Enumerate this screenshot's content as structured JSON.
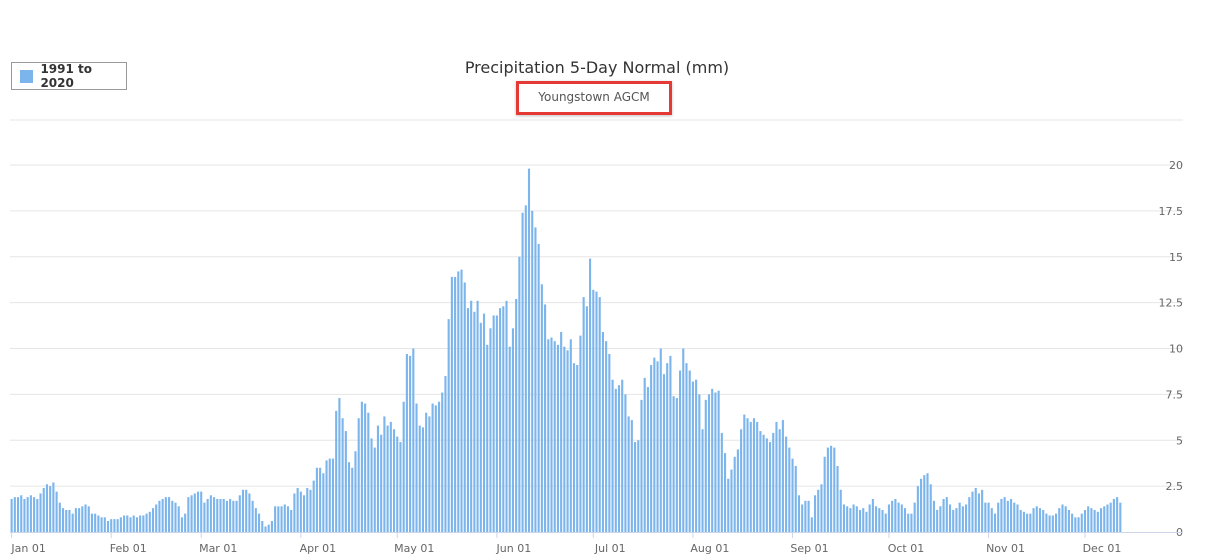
{
  "chart_data": {
    "type": "bar",
    "title": "Precipitation 5-Day Normal (mm)",
    "subtitle": "Youngstown AGCM",
    "xlabel": "",
    "ylabel": "",
    "ylim": [
      0,
      20
    ],
    "y_ticks": [
      "0",
      "2.5",
      "5",
      "7.5",
      "10",
      "12.5",
      "15",
      "17.5",
      "20"
    ],
    "y_axis_side": "right",
    "grid": true,
    "legend_placement": "top-left",
    "x_tick_labels": [
      "Jan 01",
      "Feb 01",
      "Mar 01",
      "Apr 01",
      "May 01",
      "Jun 01",
      "Jul 01",
      "Aug 01",
      "Sep 01",
      "Oct 01",
      "Nov 01",
      "Dec 01"
    ],
    "x_tick_days": [
      1,
      32,
      60,
      91,
      121,
      152,
      182,
      213,
      244,
      274,
      305,
      335
    ],
    "series": [
      {
        "name": "1991 to 2020",
        "color": "#7cb5ec",
        "x_unit": "day of year",
        "day_start": 1,
        "values": [
          1.8,
          1.9,
          1.9,
          2.0,
          1.8,
          1.9,
          2.0,
          1.9,
          1.8,
          2.1,
          2.4,
          2.6,
          2.5,
          2.7,
          2.2,
          1.6,
          1.3,
          1.2,
          1.2,
          1.0,
          1.3,
          1.3,
          1.4,
          1.5,
          1.4,
          1.0,
          1.0,
          0.9,
          0.8,
          0.8,
          0.6,
          0.7,
          0.7,
          0.7,
          0.8,
          0.9,
          0.9,
          0.8,
          0.9,
          0.8,
          0.9,
          0.9,
          1.0,
          1.1,
          1.3,
          1.5,
          1.7,
          1.8,
          1.9,
          1.9,
          1.7,
          1.6,
          1.4,
          0.8,
          1.0,
          1.9,
          2.0,
          2.1,
          2.2,
          2.2,
          1.6,
          1.8,
          2.0,
          1.9,
          1.8,
          1.8,
          1.8,
          1.7,
          1.8,
          1.7,
          1.7,
          2.0,
          2.3,
          2.3,
          2.1,
          1.7,
          1.3,
          1.0,
          0.6,
          0.3,
          0.4,
          0.6,
          1.4,
          1.4,
          1.4,
          1.5,
          1.4,
          1.2,
          2.1,
          2.4,
          2.2,
          2.0,
          2.4,
          2.3,
          2.8,
          3.5,
          3.5,
          3.2,
          3.9,
          4.0,
          4.0,
          6.6,
          7.3,
          6.2,
          5.5,
          3.8,
          3.5,
          4.4,
          6.2,
          7.1,
          7.0,
          6.5,
          5.1,
          4.6,
          5.8,
          5.3,
          6.3,
          5.8,
          6.0,
          5.6,
          5.2,
          4.9,
          7.1,
          9.7,
          9.6,
          10.0,
          7.0,
          5.8,
          5.7,
          6.5,
          6.3,
          7.0,
          6.9,
          7.1,
          7.6,
          8.5,
          11.6,
          13.9,
          13.9,
          14.2,
          14.3,
          13.6,
          12.2,
          12.6,
          12.0,
          12.6,
          11.4,
          11.9,
          10.2,
          11.1,
          11.8,
          11.8,
          12.2,
          12.3,
          12.6,
          10.1,
          11.1,
          12.7,
          15.0,
          17.4,
          17.8,
          19.8,
          17.5,
          16.6,
          15.7,
          13.5,
          12.4,
          10.5,
          10.6,
          10.4,
          10.2,
          10.9,
          10.1,
          9.9,
          10.5,
          9.2,
          9.1,
          10.7,
          12.8,
          12.3,
          14.9,
          13.2,
          13.1,
          12.8,
          10.9,
          10.4,
          9.7,
          8.3,
          7.8,
          8.0,
          8.3,
          7.5,
          6.3,
          6.1,
          4.9,
          5.0,
          7.2,
          8.4,
          7.9,
          9.1,
          9.5,
          9.3,
          10.0,
          8.6,
          9.2,
          9.6,
          7.4,
          7.3,
          8.8,
          10.0,
          9.2,
          8.8,
          8.2,
          8.3,
          7.5,
          5.6,
          7.2,
          7.5,
          7.8,
          7.6,
          7.7,
          5.4,
          4.3,
          2.9,
          3.4,
          4.1,
          4.5,
          5.6,
          6.4,
          6.2,
          6.0,
          6.2,
          6.0,
          5.5,
          5.3,
          5.1,
          4.9,
          5.4,
          6.0,
          5.6,
          6.1,
          5.2,
          4.6,
          4.0,
          3.6,
          2.0,
          1.5,
          1.7,
          1.7,
          0.8,
          2.0,
          2.3,
          2.6,
          4.1,
          4.6,
          4.7,
          4.6,
          3.6,
          2.3,
          1.5,
          1.4,
          1.3,
          1.5,
          1.4,
          1.2,
          1.3,
          1.1,
          1.5,
          1.8,
          1.4,
          1.3,
          1.2,
          1.0,
          1.5,
          1.7,
          1.8,
          1.6,
          1.5,
          1.3,
          1.0,
          1.0,
          1.6,
          2.5,
          2.9,
          3.1,
          3.2,
          2.6,
          1.7,
          1.2,
          1.4,
          1.8,
          1.9,
          1.5,
          1.2,
          1.3,
          1.6,
          1.4,
          1.5,
          1.9,
          2.2,
          2.4,
          2.1,
          2.3,
          1.6,
          1.6,
          1.3,
          1.0,
          1.6,
          1.8,
          1.9,
          1.7,
          1.8,
          1.6,
          1.5,
          1.2,
          1.1,
          1.0,
          1.0,
          1.3,
          1.4,
          1.3,
          1.2,
          1.0,
          0.9,
          0.9,
          1.0,
          1.3,
          1.5,
          1.4,
          1.2,
          1.0,
          0.8,
          0.8,
          1.0,
          1.2,
          1.4,
          1.3,
          1.2,
          1.1,
          1.3,
          1.4,
          1.5,
          1.6,
          1.8,
          1.9,
          1.6
        ]
      }
    ]
  },
  "legend": {
    "label": "1991 to 2020"
  }
}
